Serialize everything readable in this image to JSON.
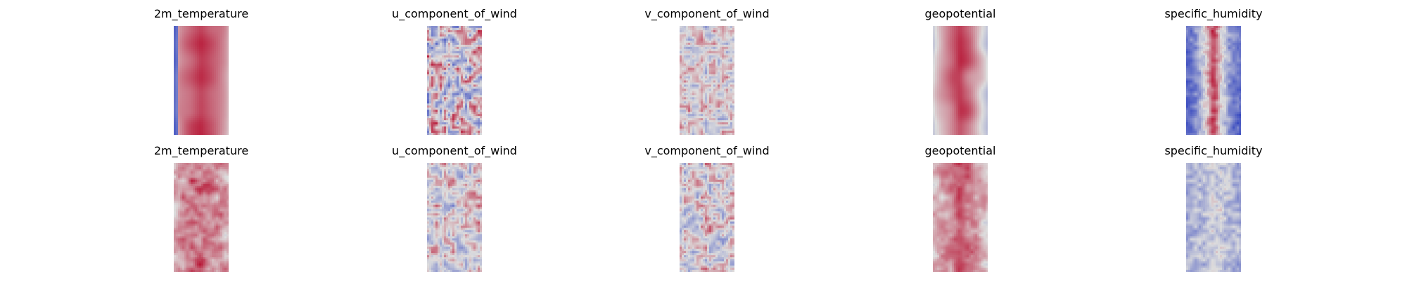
{
  "chart_data": {
    "type": "heatmap",
    "colormap": "coolwarm",
    "colormap_stops": [
      "#3b4cc0",
      "#dddddd",
      "#b40426"
    ],
    "axes_visible": false,
    "rows": [
      {
        "panels": [
          {
            "title": "2m_temperature",
            "pattern": "temperature"
          },
          {
            "title": "u_component_of_wind",
            "pattern": "wind_u"
          },
          {
            "title": "v_component_of_wind",
            "pattern": "wind_v"
          },
          {
            "title": "geopotential",
            "pattern": "geopotential"
          },
          {
            "title": "specific_humidity",
            "pattern": "humidity"
          }
        ]
      },
      {
        "panels": [
          {
            "title": "2m_temperature",
            "pattern": "temperature_noisy"
          },
          {
            "title": "u_component_of_wind",
            "pattern": "wind_u_noisy"
          },
          {
            "title": "v_component_of_wind",
            "pattern": "wind_v_noisy"
          },
          {
            "title": "geopotential",
            "pattern": "geopotential_noisy"
          },
          {
            "title": "specific_humidity",
            "pattern": "humidity_noisy"
          }
        ]
      }
    ]
  }
}
